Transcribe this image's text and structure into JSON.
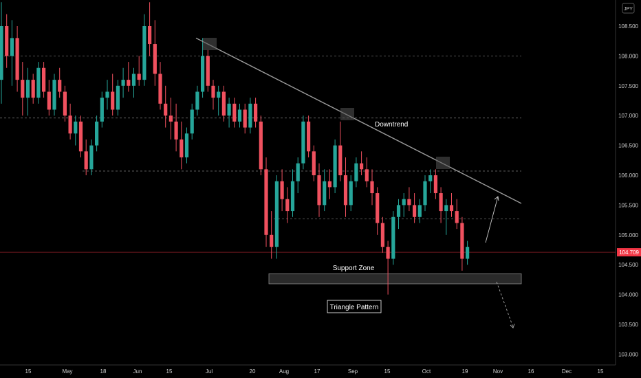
{
  "chart_data": {
    "type": "candlestick",
    "currency_label": "JPY",
    "price_axis": {
      "ticks": [
        "108.500",
        "108.000",
        "107.500",
        "107.000",
        "106.500",
        "106.000",
        "105.500",
        "105.000",
        "104.500",
        "104.000",
        "103.500",
        "103.000"
      ],
      "ylim": [
        102.7,
        108.95
      ]
    },
    "time_axis": {
      "ticks": [
        "15",
        "May",
        "18",
        "Jun",
        "15",
        "Jul",
        "20",
        "Aug",
        "17",
        "Sep",
        "15",
        "Oct",
        "19",
        "Nov",
        "16",
        "Dec",
        "15"
      ]
    },
    "current_price": {
      "label": "104.709",
      "value": 104.709,
      "color": "#f23645"
    },
    "colors": {
      "up": "#26a69a",
      "down": "#f0515f",
      "background": "#000000",
      "trendline": "#9a9a9a"
    },
    "horizontal_levels": [
      108.0,
      106.96,
      106.07,
      105.27
    ],
    "downtrend_line": {
      "start_price": 108.3,
      "end_price": 105.39
    },
    "annotations": {
      "downtrend": "Downtrend",
      "support_zone": "Support Zone",
      "triangle_pattern": "Triangle Pattern"
    },
    "support_zone_range": [
      104.18,
      104.35
    ],
    "ohlc_approx": [
      [
        107.6,
        108.9,
        107.2,
        108.5
      ],
      [
        108.5,
        108.7,
        107.8,
        108.0
      ],
      [
        108.0,
        108.6,
        107.5,
        108.3
      ],
      [
        108.3,
        108.5,
        107.4,
        107.6
      ],
      [
        107.6,
        107.9,
        107.0,
        107.3
      ],
      [
        107.3,
        107.8,
        107.0,
        107.6
      ],
      [
        107.6,
        107.7,
        107.2,
        107.3
      ],
      [
        107.3,
        107.9,
        107.2,
        107.8
      ],
      [
        107.8,
        107.9,
        107.3,
        107.4
      ],
      [
        107.4,
        107.6,
        107.0,
        107.1
      ],
      [
        107.1,
        107.7,
        107.0,
        107.6
      ],
      [
        107.6,
        107.8,
        107.3,
        107.4
      ],
      [
        107.4,
        107.5,
        106.9,
        107.0
      ],
      [
        107.0,
        107.2,
        106.6,
        106.7
      ],
      [
        106.7,
        107.0,
        106.5,
        106.9
      ],
      [
        106.9,
        107.0,
        106.3,
        106.4
      ],
      [
        106.4,
        106.6,
        106.0,
        106.1
      ],
      [
        106.1,
        106.6,
        106.0,
        106.5
      ],
      [
        106.5,
        107.0,
        106.4,
        106.9
      ],
      [
        106.9,
        107.4,
        106.8,
        107.3
      ],
      [
        107.3,
        107.6,
        107.1,
        107.4
      ],
      [
        107.4,
        107.7,
        107.0,
        107.1
      ],
      [
        107.1,
        107.6,
        107.0,
        107.5
      ],
      [
        107.5,
        107.8,
        107.3,
        107.6
      ],
      [
        107.6,
        107.9,
        107.4,
        107.5
      ],
      [
        107.5,
        107.8,
        107.3,
        107.7
      ],
      [
        107.7,
        108.0,
        107.5,
        107.6
      ],
      [
        107.6,
        108.7,
        107.5,
        108.5
      ],
      [
        108.5,
        108.9,
        108.0,
        108.2
      ],
      [
        108.2,
        108.6,
        107.5,
        107.7
      ],
      [
        107.7,
        107.9,
        107.1,
        107.2
      ],
      [
        107.2,
        107.5,
        106.8,
        107.0
      ],
      [
        107.0,
        107.3,
        106.6,
        106.9
      ],
      [
        106.9,
        107.2,
        106.4,
        106.6
      ],
      [
        106.6,
        106.9,
        106.1,
        106.3
      ],
      [
        106.3,
        106.8,
        106.2,
        106.7
      ],
      [
        106.7,
        107.2,
        106.6,
        107.1
      ],
      [
        107.1,
        107.5,
        107.0,
        107.4
      ],
      [
        107.4,
        108.3,
        107.3,
        108.0
      ],
      [
        108.0,
        108.1,
        107.4,
        107.5
      ],
      [
        107.5,
        107.6,
        107.1,
        107.3
      ],
      [
        107.3,
        107.5,
        107.0,
        107.4
      ],
      [
        107.4,
        107.5,
        106.9,
        107.0
      ],
      [
        107.0,
        107.3,
        106.8,
        107.2
      ],
      [
        107.2,
        107.3,
        106.8,
        106.9
      ],
      [
        106.9,
        107.2,
        106.8,
        107.1
      ],
      [
        107.1,
        107.2,
        106.7,
        106.8
      ],
      [
        106.8,
        107.3,
        106.7,
        107.2
      ],
      [
        107.2,
        107.3,
        106.8,
        106.9
      ],
      [
        106.9,
        107.0,
        106.0,
        106.1
      ],
      [
        106.1,
        106.3,
        104.8,
        105.0
      ],
      [
        105.0,
        105.4,
        104.6,
        104.8
      ],
      [
        104.8,
        106.0,
        104.6,
        105.9
      ],
      [
        105.9,
        106.1,
        105.4,
        105.6
      ],
      [
        105.6,
        105.8,
        105.2,
        105.4
      ],
      [
        105.4,
        106.1,
        105.3,
        105.9
      ],
      [
        105.9,
        106.3,
        105.7,
        106.2
      ],
      [
        106.2,
        107.0,
        106.1,
        106.9
      ],
      [
        106.9,
        107.0,
        106.3,
        106.4
      ],
      [
        106.4,
        106.5,
        105.9,
        106.0
      ],
      [
        106.0,
        106.2,
        105.3,
        105.5
      ],
      [
        105.5,
        106.1,
        105.4,
        105.9
      ],
      [
        105.9,
        106.1,
        105.6,
        105.8
      ],
      [
        105.8,
        106.6,
        105.7,
        106.5
      ],
      [
        106.5,
        106.9,
        105.9,
        106.0
      ],
      [
        106.0,
        106.3,
        105.3,
        105.5
      ],
      [
        105.5,
        106.0,
        105.4,
        105.9
      ],
      [
        105.9,
        106.3,
        105.8,
        106.2
      ],
      [
        106.2,
        106.4,
        106.0,
        106.1
      ],
      [
        106.1,
        106.3,
        105.8,
        105.9
      ],
      [
        105.9,
        106.1,
        105.5,
        105.7
      ],
      [
        105.7,
        105.8,
        105.0,
        105.2
      ],
      [
        105.2,
        105.3,
        104.7,
        104.8
      ],
      [
        104.8,
        104.9,
        104.0,
        104.6
      ],
      [
        104.6,
        105.4,
        104.5,
        105.3
      ],
      [
        105.3,
        105.6,
        105.1,
        105.5
      ],
      [
        105.5,
        105.7,
        105.3,
        105.6
      ],
      [
        105.6,
        105.8,
        105.4,
        105.5
      ],
      [
        105.5,
        105.7,
        105.2,
        105.3
      ],
      [
        105.3,
        105.6,
        105.2,
        105.5
      ],
      [
        105.5,
        106.0,
        105.4,
        105.9
      ],
      [
        105.9,
        106.1,
        105.7,
        106.0
      ],
      [
        106.0,
        106.1,
        105.6,
        105.7
      ],
      [
        105.7,
        105.8,
        105.2,
        105.4
      ],
      [
        105.4,
        105.6,
        105.0,
        105.5
      ],
      [
        105.5,
        105.7,
        105.3,
        105.4
      ],
      [
        105.4,
        105.6,
        105.1,
        105.2
      ],
      [
        105.2,
        105.3,
        104.4,
        104.6
      ],
      [
        104.6,
        104.9,
        104.5,
        104.8
      ]
    ]
  },
  "indicators": {}
}
